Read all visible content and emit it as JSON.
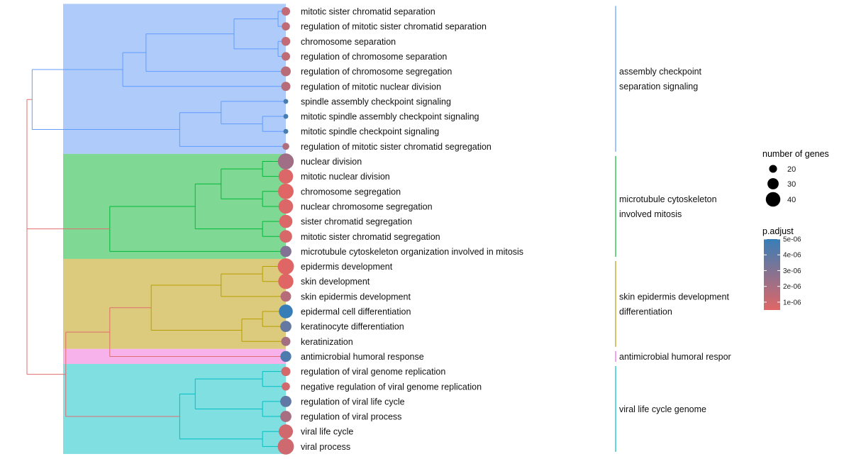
{
  "chart_data": {
    "type": "tree",
    "terms": [
      {
        "label": "mitotic sister chromatid separation",
        "genes": 22,
        "padj": 1.3e-06
      },
      {
        "label": "regulation of mitotic sister chromatid separation",
        "genes": 21,
        "padj": 1.4e-06
      },
      {
        "label": "chromosome separation",
        "genes": 23,
        "padj": 1.3e-06
      },
      {
        "label": "regulation of chromosome separation",
        "genes": 22,
        "padj": 1.4e-06
      },
      {
        "label": "regulation of chromosome segregation",
        "genes": 26,
        "padj": 1.5e-06
      },
      {
        "label": "regulation of mitotic nuclear division",
        "genes": 24,
        "padj": 1.6e-06
      },
      {
        "label": "spindle assembly checkpoint signaling",
        "genes": 11,
        "padj": 4.6e-06
      },
      {
        "label": "mitotic spindle assembly checkpoint signaling",
        "genes": 11,
        "padj": 4.6e-06
      },
      {
        "label": "mitotic spindle checkpoint signaling",
        "genes": 11,
        "padj": 4.6e-06
      },
      {
        "label": "regulation of mitotic sister chromatid segregation",
        "genes": 17,
        "padj": 1.8e-06
      },
      {
        "label": "nuclear division",
        "genes": 44,
        "padj": 2.2e-06
      },
      {
        "label": "mitotic nuclear division",
        "genes": 40,
        "padj": 6e-07
      },
      {
        "label": "chromosome segregation",
        "genes": 43,
        "padj": 5e-07
      },
      {
        "label": "nuclear chromosome segregation",
        "genes": 40,
        "padj": 6e-07
      },
      {
        "label": "sister chromatid segregation",
        "genes": 36,
        "padj": 6e-07
      },
      {
        "label": "mitotic sister chromatid segregation",
        "genes": 34,
        "padj": 7e-07
      },
      {
        "label": "microtubule cytoskeleton organization involved in mitosis",
        "genes": 30,
        "padj": 3e-06
      },
      {
        "label": "epidermis development",
        "genes": 45,
        "padj": 5e-07
      },
      {
        "label": "skin development",
        "genes": 42,
        "padj": 5e-07
      },
      {
        "label": "skin epidermis development",
        "genes": 28,
        "padj": 1.6e-06
      },
      {
        "label": "epidermal cell differentiation",
        "genes": 38,
        "padj": 5e-06
      },
      {
        "label": "keratinocyte differentiation",
        "genes": 30,
        "padj": 3.8e-06
      },
      {
        "label": "keratinization",
        "genes": 24,
        "padj": 2.1e-06
      },
      {
        "label": "antimicrobial humoral response",
        "genes": 29,
        "padj": 4.4e-06
      },
      {
        "label": "regulation of viral genome replication",
        "genes": 24,
        "padj": 8e-07
      },
      {
        "label": "negative regulation of viral genome replication",
        "genes": 21,
        "padj": 9e-07
      },
      {
        "label": "regulation of viral life cycle",
        "genes": 30,
        "padj": 3.9e-06
      },
      {
        "label": "regulation of viral process",
        "genes": 30,
        "padj": 2e-06
      },
      {
        "label": "viral life cycle",
        "genes": 39,
        "padj": 9e-07
      },
      {
        "label": "viral process",
        "genes": 45,
        "padj": 1e-06
      }
    ],
    "clusters": [
      {
        "label": "assembly checkpoint separation signaling",
        "lines": [
          "assembly checkpoint",
          "separation signaling"
        ],
        "rows": [
          0,
          9
        ],
        "fill": "#aecbfa",
        "line_color": "#619cff"
      },
      {
        "label": "microtubule cytoskeleton involved mitosis",
        "lines": [
          "microtubule cytoskeleton",
          "involved mitosis"
        ],
        "rows": [
          10,
          16
        ],
        "fill": "#80d895",
        "line_color": "#00ba38"
      },
      {
        "label": "skin epidermis development differentiation",
        "lines": [
          "skin epidermis development",
          "differentiation"
        ],
        "rows": [
          17,
          22
        ],
        "fill": "#dccb7c",
        "line_color": "#b79f00"
      },
      {
        "label": "antimicrobial humoral response",
        "lines": [
          "antimicrobial humoral respor"
        ],
        "rows": [
          23,
          23
        ],
        "fill": "#f7b2ec",
        "line_color": "#f564e3"
      },
      {
        "label": "viral life cycle genome",
        "lines": [
          "viral life cycle genome"
        ],
        "rows": [
          24,
          29
        ],
        "fill": "#80dfe1",
        "line_color": "#00bfc4"
      }
    ],
    "tree": {
      "h": 10,
      "c": [
        {
          "h": 9.8,
          "c": [
            {
              "h": 6.3,
              "c": [
                {
                  "h": 5.4,
                  "c": [
                    {
                      "h": 2.0,
                      "c": [
                        {
                          "h": 0.3,
                          "c": [
                            0,
                            1
                          ]
                        },
                        {
                          "h": 0.3,
                          "c": [
                            2,
                            3
                          ]
                        }
                      ]
                    },
                    4
                  ]
                },
                5
              ]
            },
            {
              "h": 4.1,
              "c": [
                {
                  "h": 2.5,
                  "c": [
                    6,
                    {
                      "h": 0.9,
                      "c": [
                        7,
                        8
                      ]
                    }
                  ]
                },
                9
              ]
            }
          ]
        },
        {
          "h": 6.8,
          "c": [
            {
              "h": 3.5,
              "c": [
                {
                  "h": 2.5,
                  "c": [
                    {
                      "h": 0.9,
                      "c": [
                        10,
                        11
                      ]
                    },
                    {
                      "h": 0.9,
                      "c": [
                        12,
                        13
                      ]
                    }
                  ]
                },
                {
                  "h": 0.9,
                  "c": [
                    14,
                    15
                  ]
                }
              ]
            },
            16
          ]
        },
        {
          "h": 8.5,
          "c": [
            {
              "h": 6.8,
              "c": [
                {
                  "h": 5.2,
                  "c": [
                    {
                      "h": 2.5,
                      "c": [
                        {
                          "h": 0.9,
                          "c": [
                            17,
                            18
                          ]
                        },
                        19
                      ]
                    },
                    {
                      "h": 1.7,
                      "c": [
                        {
                          "h": 0.9,
                          "c": [
                            20,
                            21
                          ]
                        },
                        22
                      ]
                    }
                  ]
                },
                23
              ]
            },
            {
              "h": 4.1,
              "c": [
                {
                  "h": 3.5,
                  "c": [
                    {
                      "h": 0.9,
                      "c": [
                        24,
                        25
                      ]
                    },
                    {
                      "h": 0.9,
                      "c": [
                        26,
                        27
                      ]
                    }
                  ]
                },
                {
                  "h": 0.9,
                  "c": [
                    28,
                    29
                  ]
                }
              ]
            }
          ]
        }
      ]
    },
    "tree_colors": {
      "0": "#619cff",
      "1": "#00ba38",
      "2": "#e06e6e"
    },
    "legend_size": {
      "title": "number of genes",
      "values": [
        20,
        30,
        40
      ]
    },
    "legend_color": {
      "title": "p.adjust",
      "ticks": [
        "5e-06",
        "4e-06",
        "3e-06",
        "2e-06",
        "1e-06"
      ],
      "tick_values": [
        5e-06,
        4e-06,
        3e-06,
        2e-06,
        1e-06
      ],
      "range": [
        5e-07,
        5e-06
      ],
      "colors": [
        "#377eb8",
        "#e06666"
      ]
    }
  }
}
